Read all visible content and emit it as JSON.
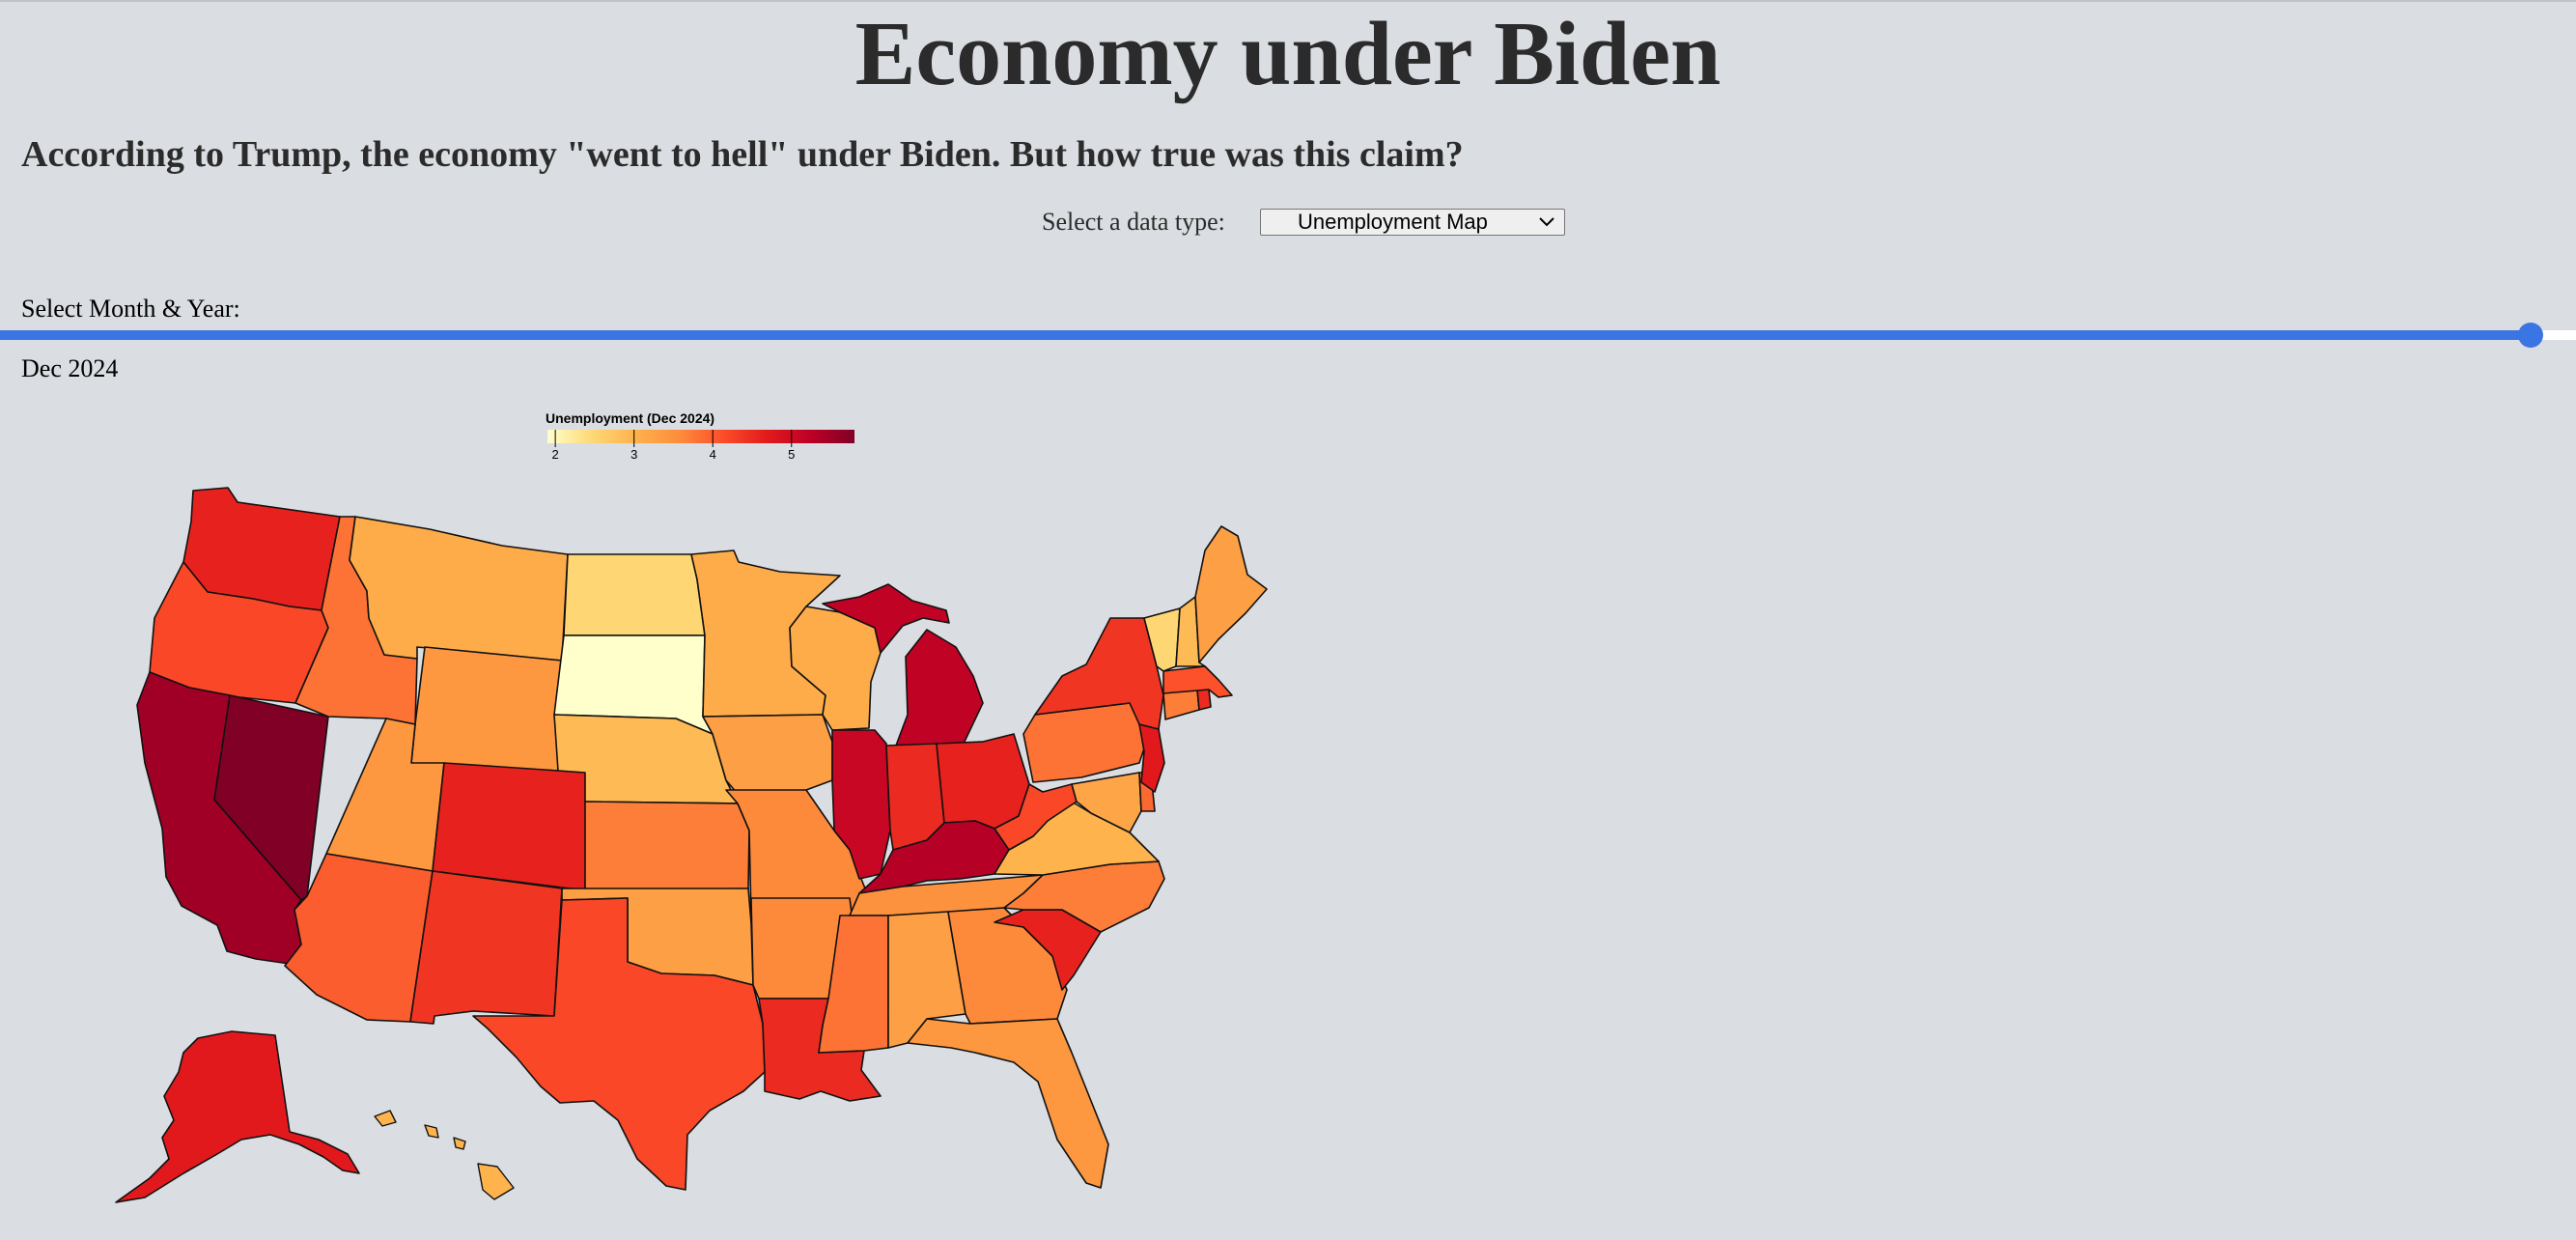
{
  "page": {
    "title": "Economy under Biden",
    "subtitle": "According to Trump, the economy \"went to hell\" under Biden. But how true was this claim?"
  },
  "controls": {
    "data_type_label": "Select a data type:",
    "data_type_value": "Unemployment Map",
    "slider_label": "Select Month & Year:",
    "slider_position": 0.987,
    "selected_period": "Dec 2024"
  },
  "legend": {
    "title": "Unemployment (Dec 2024)",
    "ticks": [
      "2",
      "3",
      "4",
      "5"
    ],
    "colors": [
      "#ffffcc",
      "#fed976",
      "#feb24c",
      "#fd8d3c",
      "#fc4e2a",
      "#e31a1c",
      "#bd0026",
      "#800026"
    ]
  },
  "chart_data": {
    "type": "choropleth",
    "title": "Unemployment (Dec 2024)",
    "scale": [
      1.9,
      5.8
    ],
    "states": [
      {
        "name": "Washington",
        "value": 4.6
      },
      {
        "name": "Oregon",
        "value": 4.2
      },
      {
        "name": "California",
        "value": 5.5
      },
      {
        "name": "Nevada",
        "value": 5.8
      },
      {
        "name": "Idaho",
        "value": 3.8
      },
      {
        "name": "Montana",
        "value": 3.1
      },
      {
        "name": "Wyoming",
        "value": 3.4
      },
      {
        "name": "Utah",
        "value": 3.4
      },
      {
        "name": "Arizona",
        "value": 4.0
      },
      {
        "name": "Colorado",
        "value": 4.6
      },
      {
        "name": "New Mexico",
        "value": 4.4
      },
      {
        "name": "North Dakota",
        "value": 2.5
      },
      {
        "name": "South Dakota",
        "value": 1.9
      },
      {
        "name": "Nebraska",
        "value": 2.9
      },
      {
        "name": "Kansas",
        "value": 3.7
      },
      {
        "name": "Oklahoma",
        "value": 3.3
      },
      {
        "name": "Texas",
        "value": 4.2
      },
      {
        "name": "Minnesota",
        "value": 3.1
      },
      {
        "name": "Iowa",
        "value": 3.3
      },
      {
        "name": "Missouri",
        "value": 3.6
      },
      {
        "name": "Arkansas",
        "value": 3.6
      },
      {
        "name": "Louisiana",
        "value": 4.5
      },
      {
        "name": "Wisconsin",
        "value": 3.1
      },
      {
        "name": "Illinois",
        "value": 5.1
      },
      {
        "name": "Michigan",
        "value": 5.2
      },
      {
        "name": "Indiana",
        "value": 4.5
      },
      {
        "name": "Ohio",
        "value": 4.6
      },
      {
        "name": "Kentucky",
        "value": 5.3
      },
      {
        "name": "Tennessee",
        "value": 3.5
      },
      {
        "name": "Mississippi",
        "value": 3.8
      },
      {
        "name": "Alabama",
        "value": 3.3
      },
      {
        "name": "Georgia",
        "value": 3.6
      },
      {
        "name": "Florida",
        "value": 3.4
      },
      {
        "name": "South Carolina",
        "value": 4.6
      },
      {
        "name": "North Carolina",
        "value": 3.7
      },
      {
        "name": "Virginia",
        "value": 3.0
      },
      {
        "name": "West Virginia",
        "value": 4.2
      },
      {
        "name": "Maryland",
        "value": 3.2
      },
      {
        "name": "Delaware",
        "value": 3.9
      },
      {
        "name": "New Jersey",
        "value": 4.7
      },
      {
        "name": "Pennsylvania",
        "value": 3.8
      },
      {
        "name": "New York",
        "value": 4.4
      },
      {
        "name": "Connecticut",
        "value": 3.7
      },
      {
        "name": "Rhode Island",
        "value": 4.5
      },
      {
        "name": "Massachusetts",
        "value": 4.1
      },
      {
        "name": "Vermont",
        "value": 2.5
      },
      {
        "name": "New Hampshire",
        "value": 2.9
      },
      {
        "name": "Maine",
        "value": 3.3
      },
      {
        "name": "Alaska",
        "value": 4.7
      },
      {
        "name": "Hawaii",
        "value": 3.0
      }
    ]
  }
}
